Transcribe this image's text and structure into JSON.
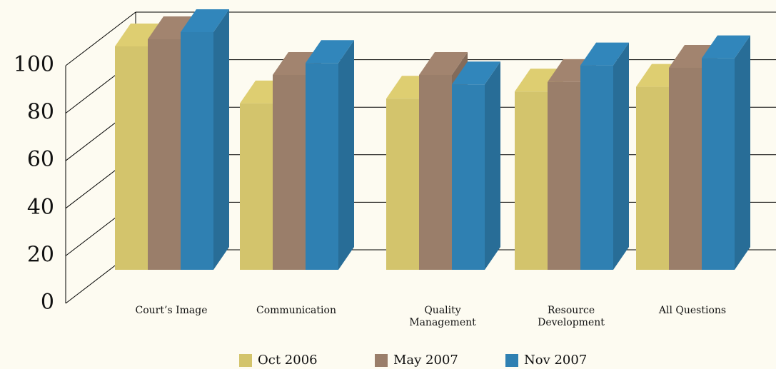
{
  "chart_data": {
    "type": "bar3d",
    "categories": [
      "Court’s Image",
      "Communication",
      "Quality Management",
      "Resource Development",
      "All Questions"
    ],
    "series": [
      {
        "name": "Oct 2006",
        "color": "#d3c46c",
        "values": [
          94,
          70,
          72,
          75,
          77
        ]
      },
      {
        "name": "May 2007",
        "color": "#9a7e6a",
        "values": [
          97,
          82,
          82,
          79,
          85
        ]
      },
      {
        "name": "Nov 2007",
        "color": "#2f80b2",
        "values": [
          100,
          87,
          78,
          86,
          89
        ]
      }
    ],
    "ylim": [
      0,
      100
    ],
    "yticks": [
      0,
      20,
      40,
      60,
      80,
      100
    ],
    "grid": true,
    "legend": "bottom"
  }
}
